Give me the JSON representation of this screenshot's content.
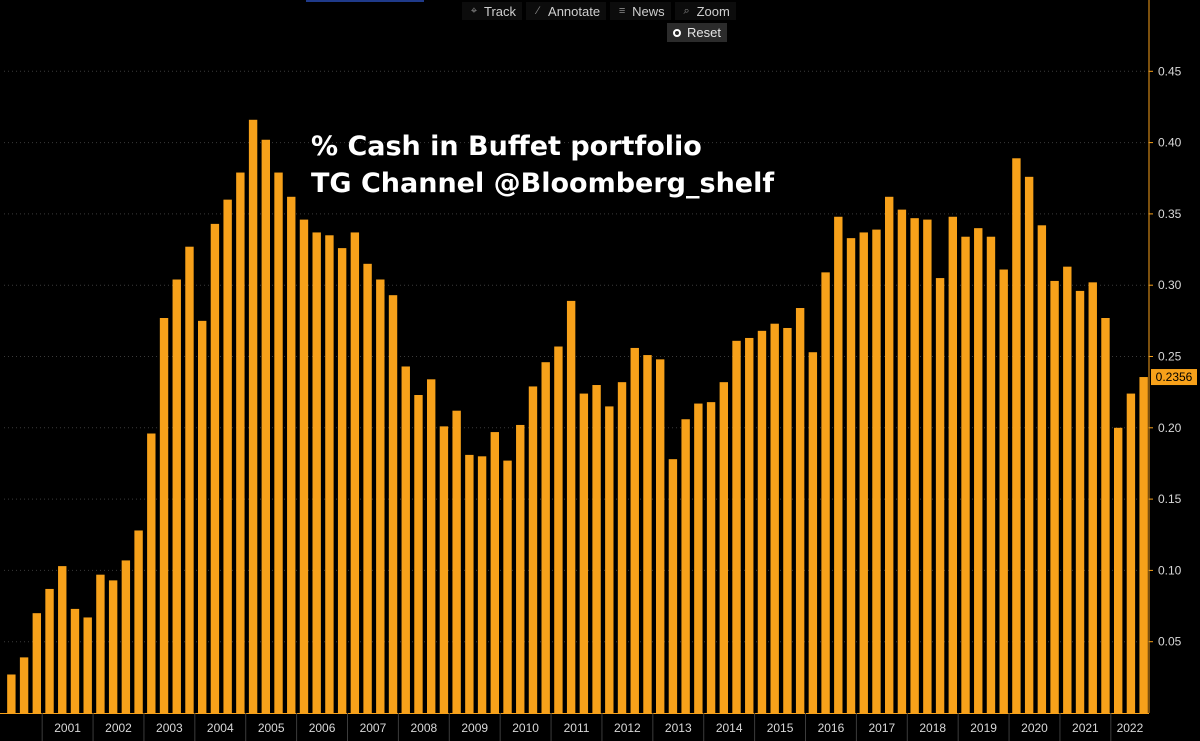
{
  "toolbar": {
    "items": [
      {
        "label": "Track",
        "icon": "crosshair-icon"
      },
      {
        "label": "Annotate",
        "icon": "pencil-icon"
      },
      {
        "label": "News",
        "icon": "news-icon"
      },
      {
        "label": "Zoom",
        "icon": "magnifier-icon"
      }
    ],
    "reset_label": "Reset"
  },
  "overlay": {
    "line1": "% Cash in Buffet portfolio",
    "line2": "TG Channel @Bloomberg_shelf"
  },
  "colors": {
    "background": "#000000",
    "bar": "#f7a11a",
    "grid": "#3a3a3a",
    "axis": "#f7a11a",
    "last_value_tag": "#f7a11a"
  },
  "chart_data": {
    "type": "bar",
    "frequency": "quarterly",
    "x_tick_labels": [
      "2001",
      "2002",
      "2003",
      "2004",
      "2005",
      "2006",
      "2007",
      "2008",
      "2009",
      "2010",
      "2011",
      "2012",
      "2013",
      "2014",
      "2015",
      "2016",
      "2017",
      "2018",
      "2019",
      "2020",
      "2021",
      "2022"
    ],
    "first_period": "2000 Q2",
    "values": [
      0.027,
      0.039,
      0.07,
      0.087,
      0.103,
      0.073,
      0.067,
      0.097,
      0.093,
      0.107,
      0.128,
      0.196,
      0.277,
      0.304,
      0.327,
      0.275,
      0.343,
      0.36,
      0.379,
      0.416,
      0.402,
      0.379,
      0.362,
      0.346,
      0.337,
      0.335,
      0.326,
      0.337,
      0.315,
      0.304,
      0.293,
      0.243,
      0.223,
      0.234,
      0.201,
      0.212,
      0.181,
      0.18,
      0.197,
      0.177,
      0.202,
      0.229,
      0.246,
      0.257,
      0.289,
      0.224,
      0.23,
      0.215,
      0.232,
      0.256,
      0.251,
      0.248,
      0.178,
      0.206,
      0.217,
      0.218,
      0.232,
      0.261,
      0.263,
      0.268,
      0.273,
      0.27,
      0.284,
      0.253,
      0.309,
      0.348,
      0.333,
      0.337,
      0.339,
      0.362,
      0.353,
      0.347,
      0.346,
      0.305,
      0.348,
      0.334,
      0.34,
      0.334,
      0.311,
      0.389,
      0.376,
      0.342,
      0.303,
      0.313,
      0.296,
      0.302,
      0.277,
      0.2,
      0.224,
      0.2356
    ],
    "last_value_label": "0.2356",
    "ylim": [
      0,
      0.5
    ],
    "y_ticks": [
      "0.05",
      "0.10",
      "0.15",
      "0.20",
      "0.25",
      "0.30",
      "0.35",
      "0.40",
      "0.45"
    ],
    "grid": "horizontal dotted",
    "y_axis_side": "right"
  }
}
